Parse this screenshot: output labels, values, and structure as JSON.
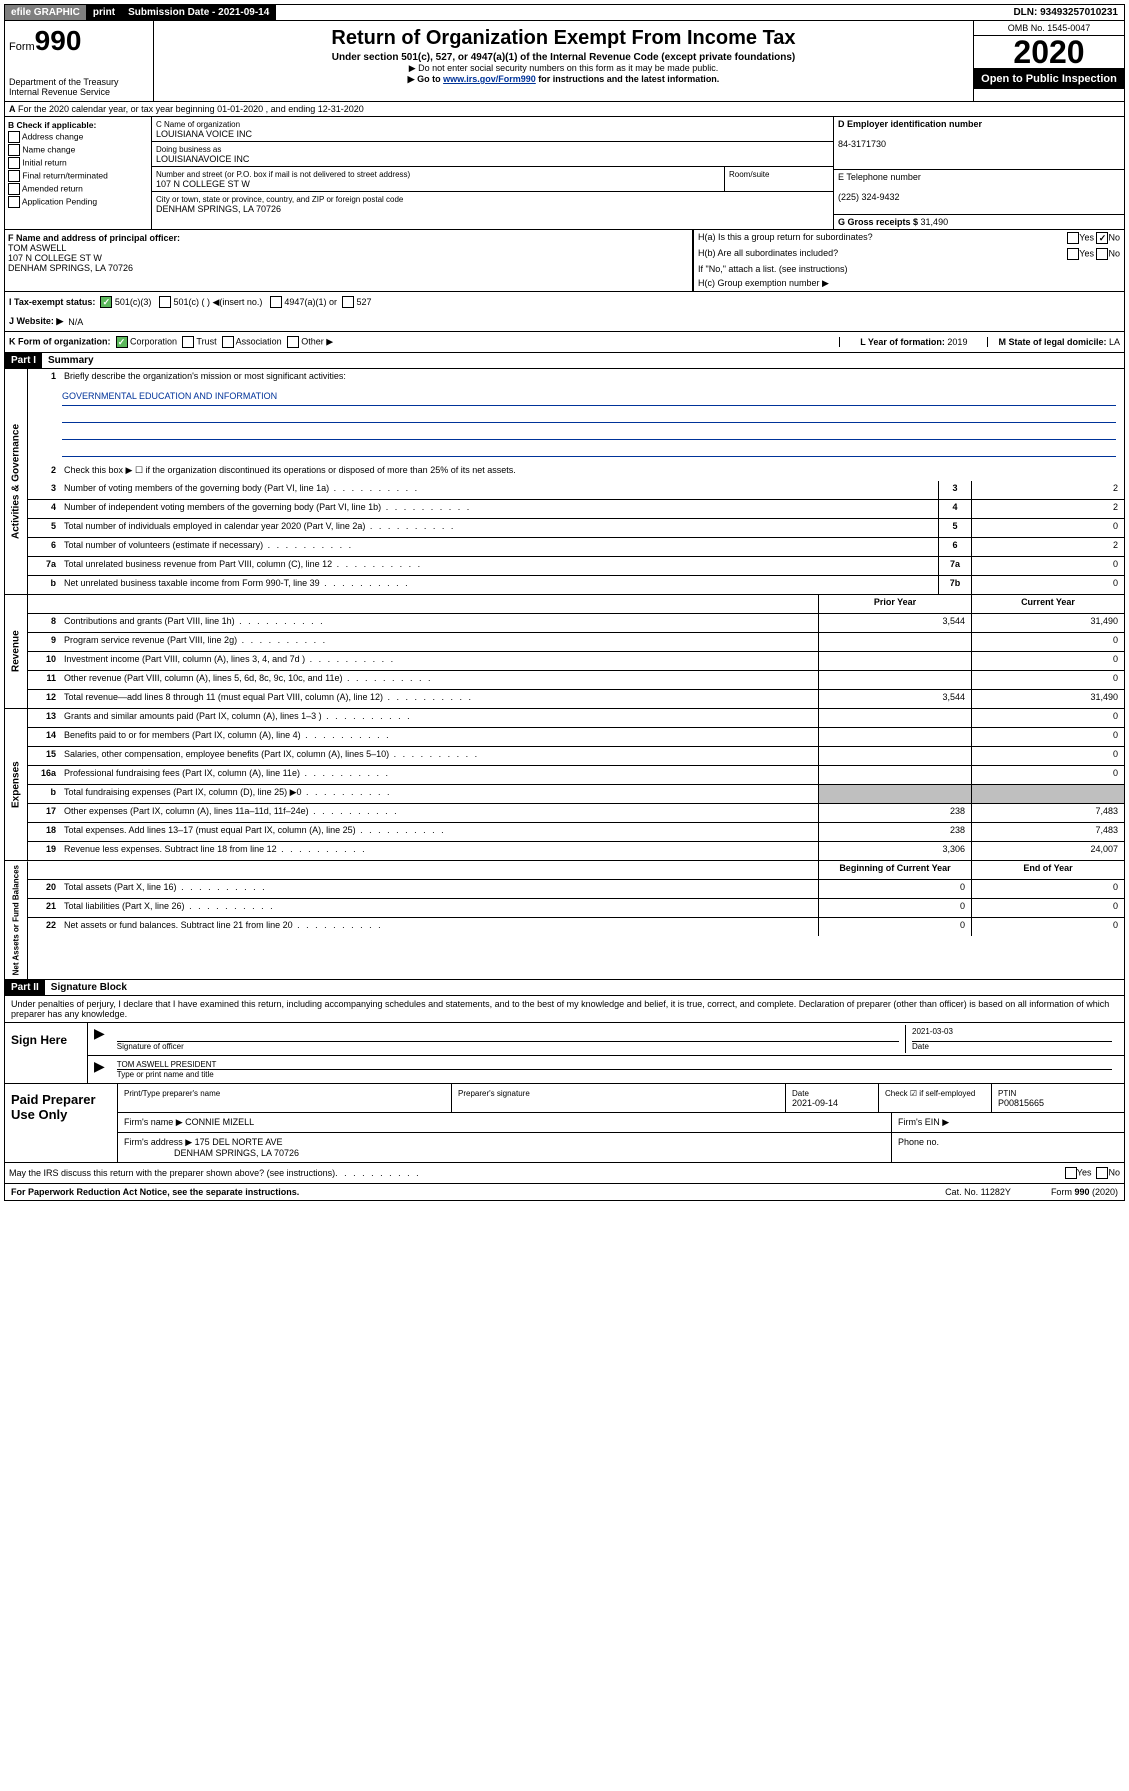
{
  "topbar": {
    "efile": "efile GRAPHIC",
    "print": "print",
    "submission_label": "Submission Date - ",
    "submission_date": "2021-09-14",
    "dln_label": "DLN: ",
    "dln": "93493257010231"
  },
  "header": {
    "form_prefix": "Form",
    "form_number": "990",
    "dept": "Department of the Treasury",
    "irs": "Internal Revenue Service",
    "title": "Return of Organization Exempt From Income Tax",
    "subtitle": "Under section 501(c), 527, or 4947(a)(1) of the Internal Revenue Code (except private foundations)",
    "note1": "▶ Do not enter social security numbers on this form as it may be made public.",
    "note2_pre": "▶ Go to ",
    "note2_link": "www.irs.gov/Form990",
    "note2_post": " for instructions and the latest information.",
    "omb": "OMB No. 1545-0047",
    "year": "2020",
    "open": "Open to Public Inspection"
  },
  "rowA": "For the 2020 calendar year, or tax year beginning 01-01-2020    , and ending 12-31-2020",
  "boxB": {
    "header": "B Check if applicable:",
    "opts": [
      "Address change",
      "Name change",
      "Initial return",
      "Final return/terminated",
      "Amended return",
      "Application Pending"
    ]
  },
  "boxC": {
    "name_label": "C Name of organization",
    "name": "LOUISIANA VOICE INC",
    "dba_label": "Doing business as",
    "dba": "LOUISIANAVOICE INC",
    "addr_label": "Number and street (or P.O. box if mail is not delivered to street address)",
    "room_label": "Room/suite",
    "addr": "107 N COLLEGE ST W",
    "city_label": "City or town, state or province, country, and ZIP or foreign postal code",
    "city": "DENHAM SPRINGS, LA  70726"
  },
  "boxD": {
    "ein_label": "D Employer identification number",
    "ein": "84-3171730",
    "phone_label": "E Telephone number",
    "phone": "(225) 324-9432",
    "gross_label": "G Gross receipts $ ",
    "gross": "31,490"
  },
  "boxF": {
    "label": "F  Name and address of principal officer:",
    "name": "TOM ASWELL",
    "addr1": "107 N COLLEGE ST W",
    "addr2": "DENHAM SPRINGS, LA  70726"
  },
  "boxH": {
    "ha": "H(a)  Is this a group return for subordinates?",
    "hb": "H(b)  Are all subordinates included?",
    "hb_note": "If \"No,\" attach a list. (see instructions)",
    "hc": "H(c)  Group exemption number ▶",
    "yes": "Yes",
    "no": "No"
  },
  "rowI": {
    "label": "I    Tax-exempt status:",
    "opt1": "501(c)(3)",
    "opt2": "501(c) (  ) ◀(insert no.)",
    "opt3": "4947(a)(1) or",
    "opt4": "527"
  },
  "rowJ": {
    "label": "J   Website: ▶",
    "val": "N/A"
  },
  "rowK": {
    "label": "K Form of organization:",
    "corp": "Corporation",
    "trust": "Trust",
    "assoc": "Association",
    "other": "Other ▶",
    "year_label": "L Year of formation: ",
    "year": "2019",
    "state_label": "M State of legal domicile: ",
    "state": "LA"
  },
  "part1": {
    "header": "Part I",
    "title": "Summary",
    "line1": "Briefly describe the organization's mission or most significant activities:",
    "mission": "GOVERNMENTAL EDUCATION AND INFORMATION",
    "line2": "Check this box ▶ ☐  if the organization discontinued its operations or disposed of more than 25% of its net assets.",
    "tabs": {
      "gov": "Activities & Governance",
      "rev": "Revenue",
      "exp": "Expenses",
      "net": "Net Assets or Fund Balances"
    },
    "rows_gov": [
      {
        "n": "3",
        "d": "Number of voting members of the governing body (Part VI, line 1a)",
        "box": "3",
        "v": "2"
      },
      {
        "n": "4",
        "d": "Number of independent voting members of the governing body (Part VI, line 1b)",
        "box": "4",
        "v": "2"
      },
      {
        "n": "5",
        "d": "Total number of individuals employed in calendar year 2020 (Part V, line 2a)",
        "box": "5",
        "v": "0"
      },
      {
        "n": "6",
        "d": "Total number of volunteers (estimate if necessary)",
        "box": "6",
        "v": "2"
      },
      {
        "n": "7a",
        "d": "Total unrelated business revenue from Part VIII, column (C), line 12",
        "box": "7a",
        "v": "0"
      },
      {
        "n": "b",
        "d": "Net unrelated business taxable income from Form 990-T, line 39",
        "box": "7b",
        "v": "0"
      }
    ],
    "col_headers": {
      "prior": "Prior Year",
      "current": "Current Year"
    },
    "rows_rev": [
      {
        "n": "8",
        "d": "Contributions and grants (Part VIII, line 1h)",
        "p": "3,544",
        "c": "31,490"
      },
      {
        "n": "9",
        "d": "Program service revenue (Part VIII, line 2g)",
        "p": "",
        "c": "0"
      },
      {
        "n": "10",
        "d": "Investment income (Part VIII, column (A), lines 3, 4, and 7d )",
        "p": "",
        "c": "0"
      },
      {
        "n": "11",
        "d": "Other revenue (Part VIII, column (A), lines 5, 6d, 8c, 9c, 10c, and 11e)",
        "p": "",
        "c": "0"
      },
      {
        "n": "12",
        "d": "Total revenue—add lines 8 through 11 (must equal Part VIII, column (A), line 12)",
        "p": "3,544",
        "c": "31,490"
      }
    ],
    "rows_exp": [
      {
        "n": "13",
        "d": "Grants and similar amounts paid (Part IX, column (A), lines 1–3 )",
        "p": "",
        "c": "0"
      },
      {
        "n": "14",
        "d": "Benefits paid to or for members (Part IX, column (A), line 4)",
        "p": "",
        "c": "0"
      },
      {
        "n": "15",
        "d": "Salaries, other compensation, employee benefits (Part IX, column (A), lines 5–10)",
        "p": "",
        "c": "0"
      },
      {
        "n": "16a",
        "d": "Professional fundraising fees (Part IX, column (A), line 11e)",
        "p": "",
        "c": "0"
      },
      {
        "n": "b",
        "d": "Total fundraising expenses (Part IX, column (D), line 25) ▶0",
        "p": "shaded",
        "c": "shaded"
      },
      {
        "n": "17",
        "d": "Other expenses (Part IX, column (A), lines 11a–11d, 11f–24e)",
        "p": "238",
        "c": "7,483"
      },
      {
        "n": "18",
        "d": "Total expenses. Add lines 13–17 (must equal Part IX, column (A), line 25)",
        "p": "238",
        "c": "7,483"
      },
      {
        "n": "19",
        "d": "Revenue less expenses. Subtract line 18 from line 12",
        "p": "3,306",
        "c": "24,007"
      }
    ],
    "col_headers2": {
      "begin": "Beginning of Current Year",
      "end": "End of Year"
    },
    "rows_net": [
      {
        "n": "20",
        "d": "Total assets (Part X, line 16)",
        "p": "0",
        "c": "0"
      },
      {
        "n": "21",
        "d": "Total liabilities (Part X, line 26)",
        "p": "0",
        "c": "0"
      },
      {
        "n": "22",
        "d": "Net assets or fund balances. Subtract line 21 from line 20",
        "p": "0",
        "c": "0"
      }
    ]
  },
  "part2": {
    "header": "Part II",
    "title": "Signature Block",
    "declare": "Under penalties of perjury, I declare that I have examined this return, including accompanying schedules and statements, and to the best of my knowledge and belief, it is true, correct, and complete. Declaration of preparer (other than officer) is based on all information of which preparer has any knowledge.",
    "sign_here": "Sign Here",
    "sig_officer": "Signature of officer",
    "date": "2021-03-03",
    "date_label": "Date",
    "officer_name": "TOM ASWELL PRESIDENT",
    "type_name": "Type or print name and title",
    "paid": "Paid Preparer Use Only",
    "prep_name_label": "Print/Type preparer's name",
    "prep_sig_label": "Preparer's signature",
    "prep_date": "2021-09-14",
    "check_self": "Check ☑ if self-employed",
    "ptin_label": "PTIN",
    "ptin": "P00815665",
    "firm_name_label": "Firm's name     ▶",
    "firm_name": "CONNIE MIZELL",
    "firm_ein_label": "Firm's EIN ▶",
    "firm_addr_label": "Firm's address ▶",
    "firm_addr": "175 DEL NORTE AVE",
    "firm_city": "DENHAM SPRINGS, LA  70726",
    "phone_label": "Phone no.",
    "discuss": "May the IRS discuss this return with the preparer shown above? (see instructions)"
  },
  "footer": {
    "left": "For Paperwork Reduction Act Notice, see the separate instructions.",
    "mid": "Cat. No. 11282Y",
    "right": "Form 990 (2020)"
  }
}
